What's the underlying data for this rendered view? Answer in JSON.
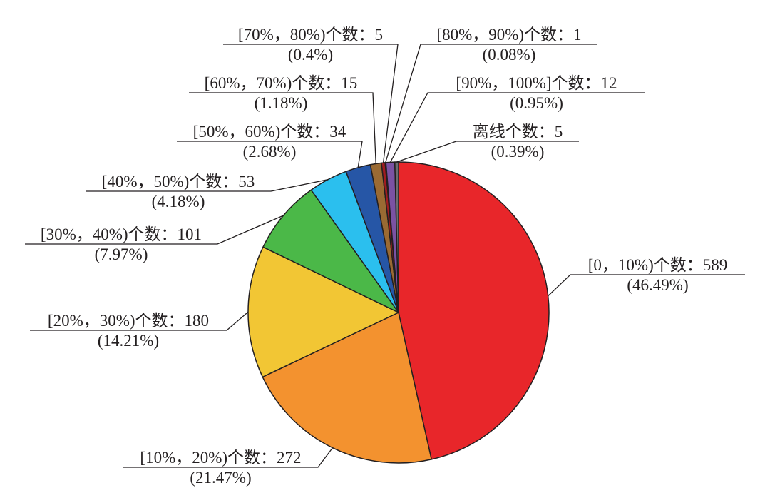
{
  "chart_data": {
    "type": "pie",
    "title": "",
    "start": "12 o'clock, clockwise",
    "slices": [
      {
        "label": "[0，10%)个数：589",
        "count": 589,
        "percent_label": "(46.49%)",
        "percent": 46.49,
        "color": "#e8262a"
      },
      {
        "label": "[10%，20%)个数：272",
        "count": 272,
        "percent_label": "(21.47%)",
        "percent": 21.47,
        "color": "#f3922f"
      },
      {
        "label": "[20%，30%)个数：180",
        "count": 180,
        "percent_label": "(14.21%)",
        "percent": 14.21,
        "color": "#f2c634"
      },
      {
        "label": "[30%，40%)个数：101",
        "count": 101,
        "percent_label": "(7.97%)",
        "percent": 7.97,
        "color": "#4bb848"
      },
      {
        "label": "[40%，50%)个数：53",
        "count": 53,
        "percent_label": "(4.18%)",
        "percent": 4.18,
        "color": "#2bbfee"
      },
      {
        "label": "[50%，60%)个数：34",
        "count": 34,
        "percent_label": "(2.68%)",
        "percent": 2.68,
        "color": "#2656a6"
      },
      {
        "label": "[60%，70%)个数：15",
        "count": 15,
        "percent_label": "(1.18%)",
        "percent": 1.18,
        "color": "#9a6a33"
      },
      {
        "label": "[70%，80%)个数：5",
        "count": 5,
        "percent_label": "(0.4%)",
        "percent": 0.4,
        "color": "#a01c20"
      },
      {
        "label": "[80%，90%)个数：1",
        "count": 1,
        "percent_label": "(0.08%)",
        "percent": 0.08,
        "color": "#8dc63f"
      },
      {
        "label": "[90%，100%]个数：12",
        "count": 12,
        "percent_label": "(0.95%)",
        "percent": 0.95,
        "color": "#7b52a3"
      },
      {
        "label": "离线个数：5",
        "count": 5,
        "percent_label": "(0.39%)",
        "percent": 0.39,
        "color": "#6d6e71"
      }
    ]
  }
}
